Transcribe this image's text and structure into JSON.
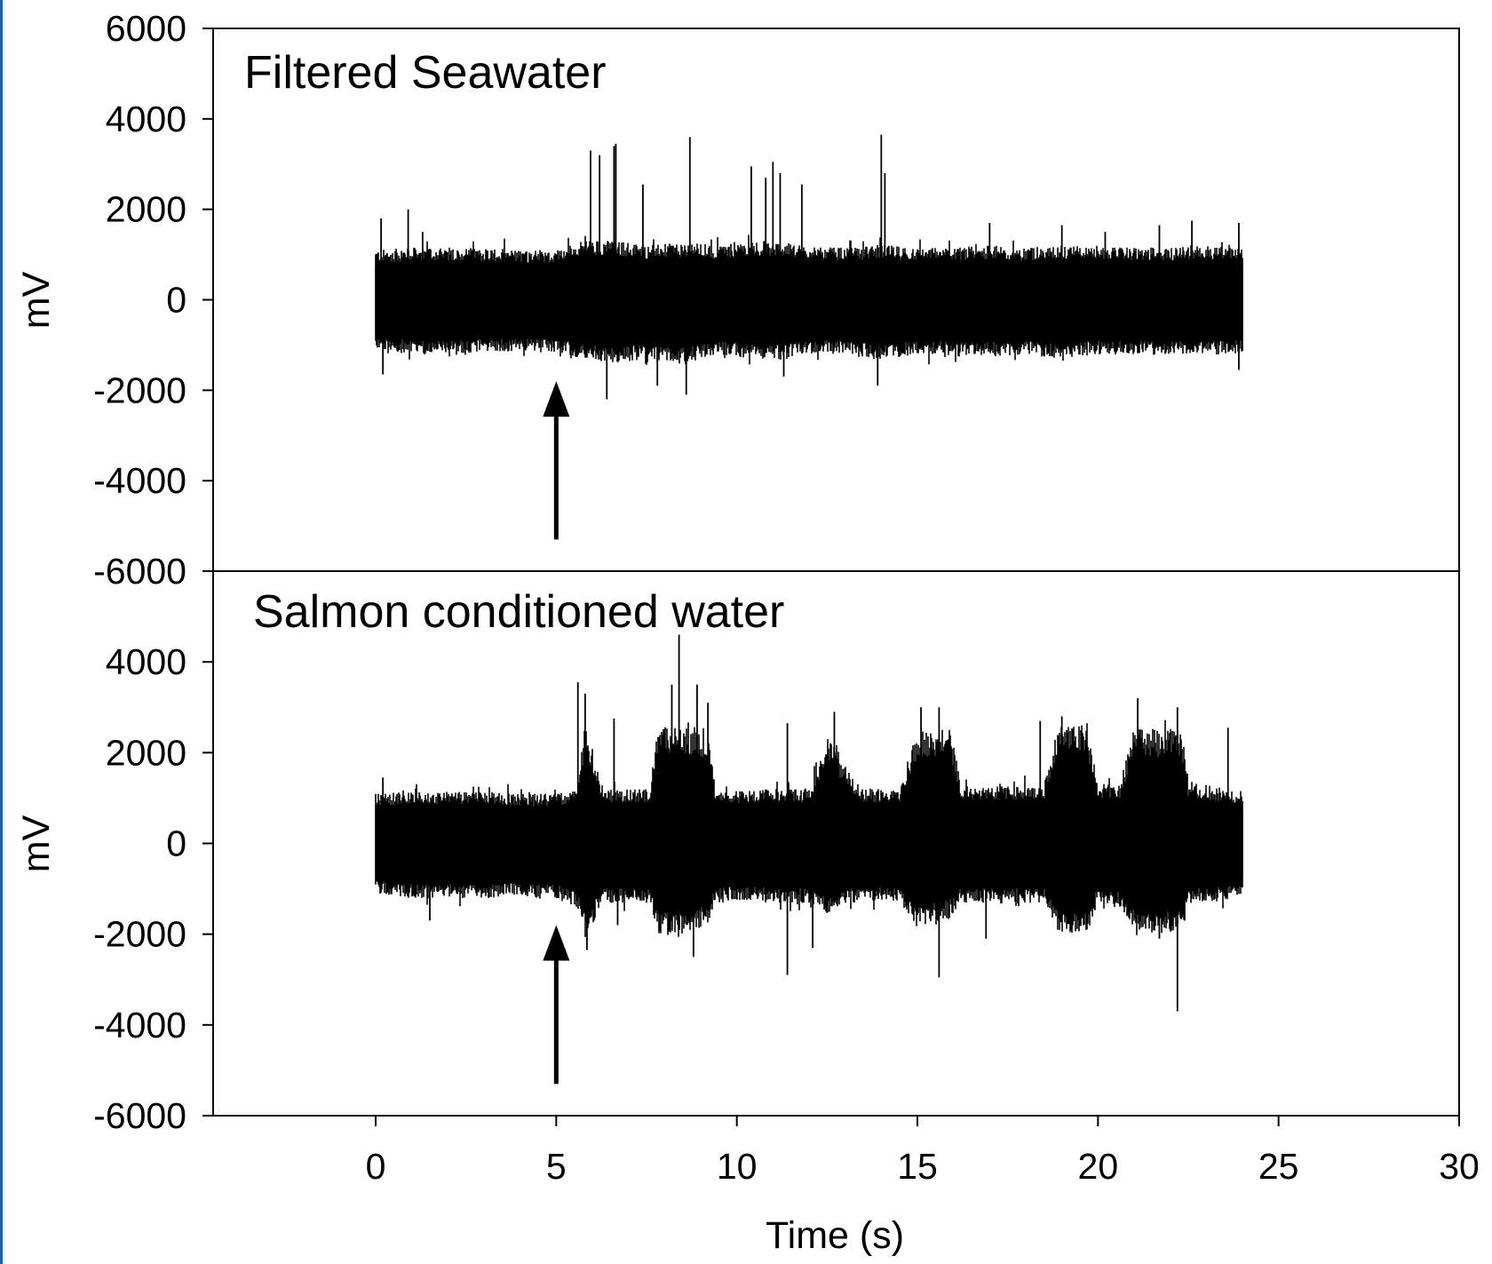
{
  "colors": {
    "trace": "#000000",
    "frame": "#000000",
    "left_bar": "#1f5fa8",
    "background": "#ffffff"
  },
  "chart_data": [
    {
      "type": "line",
      "title": "Filtered Seawater",
      "ylabel": "mV",
      "xlabel": "",
      "xlim": [
        -4.5,
        30
      ],
      "ylim": [
        -6000,
        6000
      ],
      "yticks": [
        6000,
        4000,
        2000,
        0,
        -2000,
        -4000,
        -6000
      ],
      "ytick_labels": [
        "6000",
        "4000",
        "2000",
        "0",
        "-2000",
        "-4000",
        "-6000"
      ],
      "signal_x_range": [
        0,
        24
      ],
      "envelope": {
        "x": [
          0,
          1,
          2,
          3,
          4,
          5,
          5.8,
          6.6,
          7.5,
          8.6,
          9.5,
          10.5,
          11.3,
          12.2,
          13,
          14.1,
          15,
          16,
          17,
          18,
          19,
          20,
          21,
          22,
          23,
          24
        ],
        "high": [
          1000,
          1050,
          1050,
          1050,
          1000,
          1000,
          1200,
          1200,
          1100,
          1150,
          1100,
          1200,
          1150,
          1050,
          1050,
          1100,
          1050,
          1050,
          1100,
          1050,
          1100,
          1050,
          1050,
          1050,
          1100,
          1100
        ],
        "low": [
          -1000,
          -1100,
          -1100,
          -1050,
          -1050,
          -1050,
          -1200,
          -1300,
          -1200,
          -1300,
          -1100,
          -1200,
          -1200,
          -1100,
          -1100,
          -1200,
          -1100,
          -1100,
          -1150,
          -1100,
          -1200,
          -1100,
          -1100,
          -1100,
          -1100,
          -1100
        ]
      },
      "spikes": [
        {
          "x": 0.15,
          "y": 1800
        },
        {
          "x": 0.2,
          "y": -1650
        },
        {
          "x": 0.9,
          "y": 2000
        },
        {
          "x": 1.3,
          "y": 1500
        },
        {
          "x": 5.95,
          "y": 3300
        },
        {
          "x": 6.2,
          "y": 3200
        },
        {
          "x": 6.6,
          "y": 3400
        },
        {
          "x": 6.65,
          "y": 3450
        },
        {
          "x": 6.4,
          "y": -2200
        },
        {
          "x": 7.4,
          "y": 2550
        },
        {
          "x": 7.8,
          "y": -1900
        },
        {
          "x": 8.7,
          "y": 3600
        },
        {
          "x": 8.6,
          "y": -2100
        },
        {
          "x": 10.4,
          "y": 2950
        },
        {
          "x": 10.8,
          "y": 2700
        },
        {
          "x": 11.0,
          "y": 3050
        },
        {
          "x": 11.2,
          "y": 2800
        },
        {
          "x": 11.3,
          "y": -1700
        },
        {
          "x": 11.8,
          "y": 2550
        },
        {
          "x": 14.0,
          "y": 3650
        },
        {
          "x": 14.1,
          "y": 2800
        },
        {
          "x": 13.9,
          "y": -1900
        },
        {
          "x": 17.0,
          "y": 1700
        },
        {
          "x": 19.0,
          "y": 1650
        },
        {
          "x": 20.2,
          "y": 1500
        },
        {
          "x": 21.7,
          "y": 1650
        },
        {
          "x": 22.6,
          "y": 1750
        },
        {
          "x": 23.9,
          "y": 1700
        },
        {
          "x": 23.9,
          "y": -1550
        }
      ],
      "arrow_x": 5
    },
    {
      "type": "line",
      "title": "Salmon conditioned water",
      "ylabel": "mV",
      "xlabel": "Time (s)",
      "xlim": [
        -4.5,
        30
      ],
      "ylim": [
        -6000,
        6000
      ],
      "yticks": [
        4000,
        2000,
        0,
        -2000,
        -4000,
        -6000
      ],
      "ytick_labels": [
        "4000",
        "2000",
        "0",
        "-2000",
        "-4000",
        "-6000"
      ],
      "xticks": [
        0,
        5,
        10,
        15,
        20,
        25,
        30
      ],
      "xtick_labels": [
        "0",
        "5",
        "10",
        "15",
        "20",
        "25",
        "30"
      ],
      "signal_x_range": [
        0,
        24
      ],
      "envelope": {
        "x": [
          0,
          1,
          2,
          3,
          4,
          5,
          5.6,
          5.8,
          6.3,
          7.6,
          7.8,
          8.5,
          9.2,
          9.4,
          10.2,
          11,
          12,
          12.5,
          13.2,
          13.5,
          14.5,
          15,
          15.9,
          16.2,
          17,
          18.5,
          18.9,
          19.7,
          20,
          20.6,
          21,
          22.3,
          22.5,
          23.5,
          24
        ],
        "high": [
          1000,
          1050,
          1050,
          1050,
          1000,
          1000,
          1100,
          2500,
          1100,
          1100,
          2300,
          2400,
          2300,
          1100,
          1050,
          1100,
          1100,
          2200,
          1300,
          1100,
          1100,
          2300,
          2300,
          1200,
          1150,
          1150,
          2400,
          2400,
          1200,
          1200,
          2300,
          2300,
          1250,
          1100,
          1000
        ],
        "low": [
          -1000,
          -1100,
          -1100,
          -1100,
          -1050,
          -1100,
          -1300,
          -1900,
          -1200,
          -1200,
          -1800,
          -1900,
          -1600,
          -1200,
          -1150,
          -1200,
          -1200,
          -1400,
          -1200,
          -1150,
          -1150,
          -1700,
          -1500,
          -1200,
          -1200,
          -1200,
          -1800,
          -1800,
          -1200,
          -1300,
          -1800,
          -1800,
          -1200,
          -1150,
          -1000
        ]
      },
      "spikes": [
        {
          "x": 0.2,
          "y": 1450
        },
        {
          "x": 1.5,
          "y": -1700
        },
        {
          "x": 5.6,
          "y": 3550
        },
        {
          "x": 5.8,
          "y": 3300
        },
        {
          "x": 5.85,
          "y": -2350
        },
        {
          "x": 6.6,
          "y": 2750
        },
        {
          "x": 6.7,
          "y": -1800
        },
        {
          "x": 8.2,
          "y": 3500
        },
        {
          "x": 8.4,
          "y": 4600
        },
        {
          "x": 8.9,
          "y": 3500
        },
        {
          "x": 9.2,
          "y": 3100
        },
        {
          "x": 8.8,
          "y": -2500
        },
        {
          "x": 11.4,
          "y": 2650
        },
        {
          "x": 11.4,
          "y": -2900
        },
        {
          "x": 12.1,
          "y": -2300
        },
        {
          "x": 12.7,
          "y": 2900
        },
        {
          "x": 15.1,
          "y": 3000
        },
        {
          "x": 15.6,
          "y": 3000
        },
        {
          "x": 15.6,
          "y": -2950
        },
        {
          "x": 16.9,
          "y": -2100
        },
        {
          "x": 18.4,
          "y": 2700
        },
        {
          "x": 19.0,
          "y": 2800
        },
        {
          "x": 21.1,
          "y": 3200
        },
        {
          "x": 22.2,
          "y": 3000
        },
        {
          "x": 22.2,
          "y": -3700
        },
        {
          "x": 23.6,
          "y": 2550
        },
        {
          "x": 21.7,
          "y": -2100
        }
      ],
      "arrow_x": 5
    }
  ]
}
